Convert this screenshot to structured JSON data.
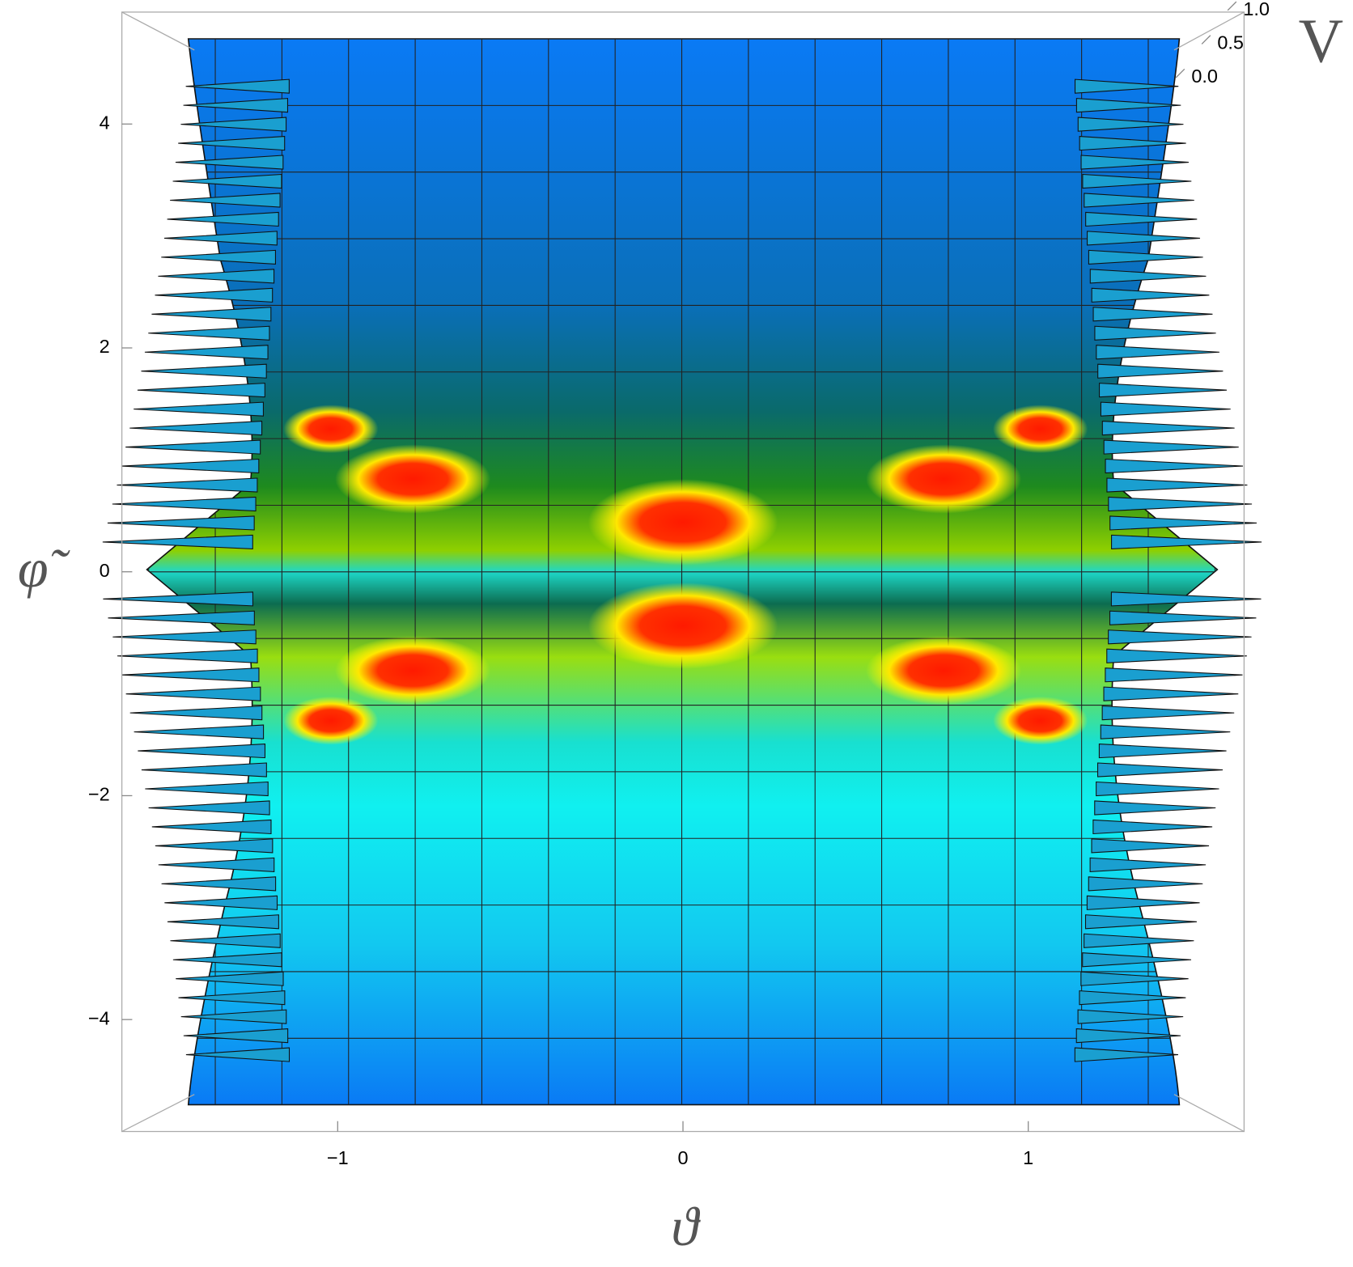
{
  "chart_data": {
    "type": "surface",
    "x_label": "ϑ",
    "y_label": "φ̃",
    "z_label": "V",
    "xlim": [
      -1.625,
      1.625
    ],
    "ylim": [
      -5,
      5
    ],
    "zlim": [
      0,
      1
    ],
    "xticks": [
      {
        "value": -1,
        "label": "−1"
      },
      0,
      1
    ],
    "yticks": [
      {
        "value": -4,
        "label": "−4"
      },
      {
        "value": -2,
        "label": "−2"
      },
      0,
      2,
      4
    ],
    "zticks": [
      {
        "value": 0,
        "label": "0.0"
      },
      {
        "value": 0.5,
        "label": "0.5"
      },
      {
        "value": 1,
        "label": "1.0"
      }
    ]
  }
}
